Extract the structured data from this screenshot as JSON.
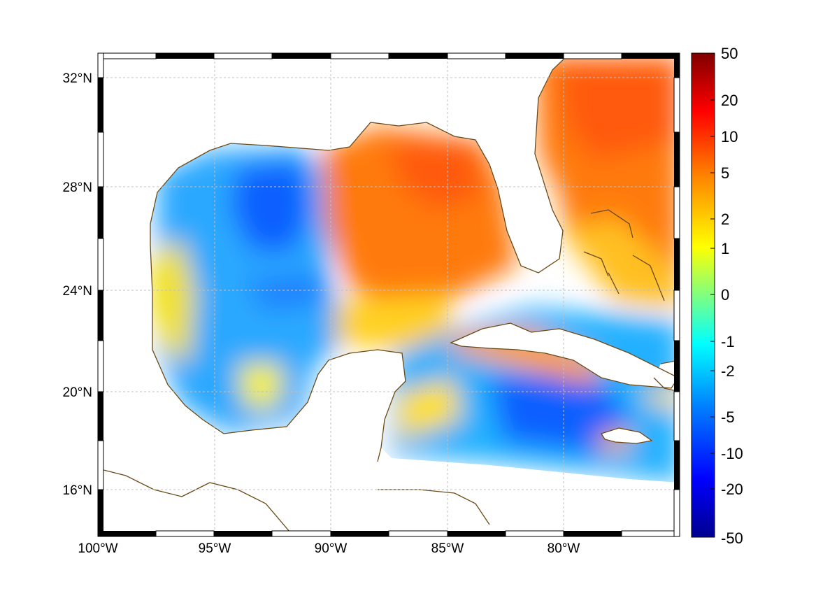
{
  "map": {
    "lon_labels": [
      "100°W",
      "95°W",
      "90°W",
      "85°W",
      "80°W"
    ],
    "lat_labels": [
      "32°N",
      "28°N",
      "24°N",
      "20°N",
      "16°N"
    ],
    "lon_values": [
      -100,
      -95,
      -90,
      -85,
      -80
    ],
    "lat_values": [
      32,
      28,
      24,
      20,
      16
    ],
    "extent": {
      "lon_min": -100,
      "lon_max": -75,
      "lat_min": 14.3,
      "lat_max": 33
    },
    "colorbar": {
      "tick_labels": [
        "50",
        "20",
        "10",
        "5",
        "2",
        "1",
        "0",
        "-1",
        "-2",
        "-5",
        "-10",
        "-20",
        "-50"
      ],
      "colors": [
        "#00008f",
        "#0000ff",
        "#0080ff",
        "#00ffff",
        "#80ff80",
        "#ffff00",
        "#ff8000",
        "#ff0000",
        "#800000"
      ]
    },
    "colors": {
      "land": "#ffffff",
      "coastline": "#6b4a17",
      "grid": "#c0c0c0",
      "frame_dark": "#000000",
      "frame_light": "#ffffff"
    }
  }
}
